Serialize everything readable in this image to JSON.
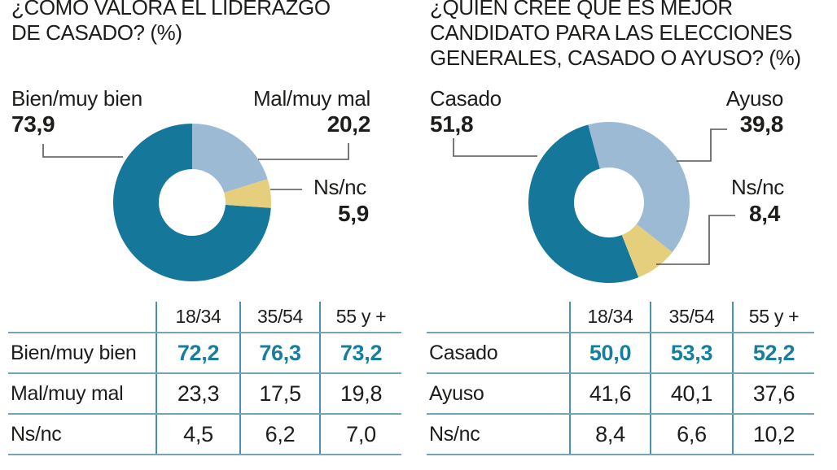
{
  "palette": {
    "teal": "#15789B",
    "light_blue": "#9CBAD3",
    "yellow": "#E5CF7D",
    "table_highlight_text": "#187E9D",
    "table_line_vertical": "#4693AF",
    "table_line_horizontal": "#73A5B7",
    "leader_line": "#555555",
    "text": "#1D1D1B"
  },
  "chart_data": [
    {
      "type": "donut",
      "title": "¿CÓMO VALORA EL LIDERAZGO DE CASADO? (%)",
      "title_lines": [
        "¿CÓMO VALORA EL LIDERAZGO",
        "DE CASADO? (%)"
      ],
      "unit": "%",
      "start_angle_deg": 94,
      "slices": [
        {
          "label": "Bien/muy bien",
          "value": 73.9,
          "display": "73,9",
          "color": "#15789B"
        },
        {
          "label": "Mal/muy mal",
          "value": 20.2,
          "display": "20,2",
          "color": "#9CBAD3"
        },
        {
          "label": "Ns/nc",
          "value": 5.9,
          "display": "5,9",
          "color": "#E5CF7D"
        }
      ],
      "table": {
        "col_headers": [
          "18/34",
          "35/54",
          "55 y +"
        ],
        "rows": [
          {
            "label": "Bien/muy bien",
            "values": [
              "72,2",
              "76,3",
              "73,2"
            ],
            "highlight": true
          },
          {
            "label": "Mal/muy mal",
            "values": [
              "23,3",
              "17,5",
              "19,8"
            ],
            "highlight": false
          },
          {
            "label": "Ns/nc",
            "values": [
              "4,5",
              "6,2",
              "7,0"
            ],
            "highlight": false
          }
        ]
      }
    },
    {
      "type": "donut",
      "title": "¿QUIÉN CREE QUE ES MEJOR CANDIDATO PARA LAS ELECCIONES GENERALES, CASADO O AYUSO? (%)",
      "title_lines": [
        "¿QUIÉN CREE QUE ES MEJOR",
        "CANDIDATO PARA LAS ELECCIONES",
        "GENERALES, CASADO O AYUSO? (%)"
      ],
      "unit": "%",
      "start_angle_deg": 158.5,
      "slices": [
        {
          "label": "Casado",
          "value": 51.8,
          "display": "51,8",
          "color": "#15789B"
        },
        {
          "label": "Ayuso",
          "value": 39.8,
          "display": "39,8",
          "color": "#9CBAD3"
        },
        {
          "label": "Ns/nc",
          "value": 8.4,
          "display": "8,4",
          "color": "#E5CF7D"
        }
      ],
      "table": {
        "col_headers": [
          "18/34",
          "35/54",
          "55 y +"
        ],
        "rows": [
          {
            "label": "Casado",
            "values": [
              "50,0",
              "53,3",
              "52,2"
            ],
            "highlight": true
          },
          {
            "label": "Ayuso",
            "values": [
              "41,6",
              "40,1",
              "37,6"
            ],
            "highlight": false
          },
          {
            "label": "Ns/nc",
            "values": [
              "8,4",
              "6,6",
              "10,2"
            ],
            "highlight": false
          }
        ]
      }
    }
  ]
}
